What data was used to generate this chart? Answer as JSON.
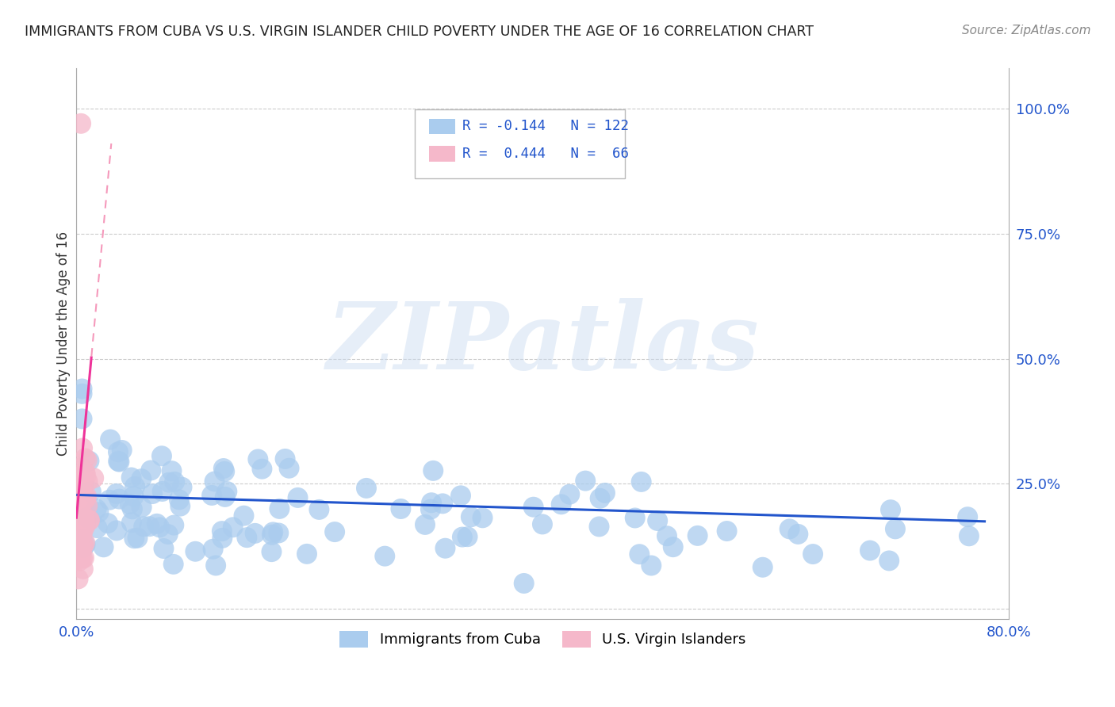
{
  "title": "IMMIGRANTS FROM CUBA VS U.S. VIRGIN ISLANDER CHILD POVERTY UNDER THE AGE OF 16 CORRELATION CHART",
  "source": "Source: ZipAtlas.com",
  "ylabel": "Child Poverty Under the Age of 16",
  "xlim": [
    0.0,
    0.8
  ],
  "ylim": [
    -0.02,
    1.08
  ],
  "blue_color": "#aaccee",
  "pink_color": "#f5b8ca",
  "blue_line_color": "#2255cc",
  "pink_line_solid_color": "#ee3399",
  "pink_line_dash_color": "#f599bb",
  "watermark_color": "#c8daf0",
  "watermark_text": "ZIPatlas",
  "legend_text_color": "#2255cc",
  "title_color": "#222222",
  "ytick_vals": [
    0.0,
    0.25,
    0.5,
    0.75,
    1.0
  ],
  "ytick_labels": [
    "",
    "25.0%",
    "50.0%",
    "75.0%",
    "100.0%"
  ],
  "xtick_vals": [
    0.0,
    0.8
  ],
  "xtick_labels": [
    "0.0%",
    "80.0%"
  ]
}
